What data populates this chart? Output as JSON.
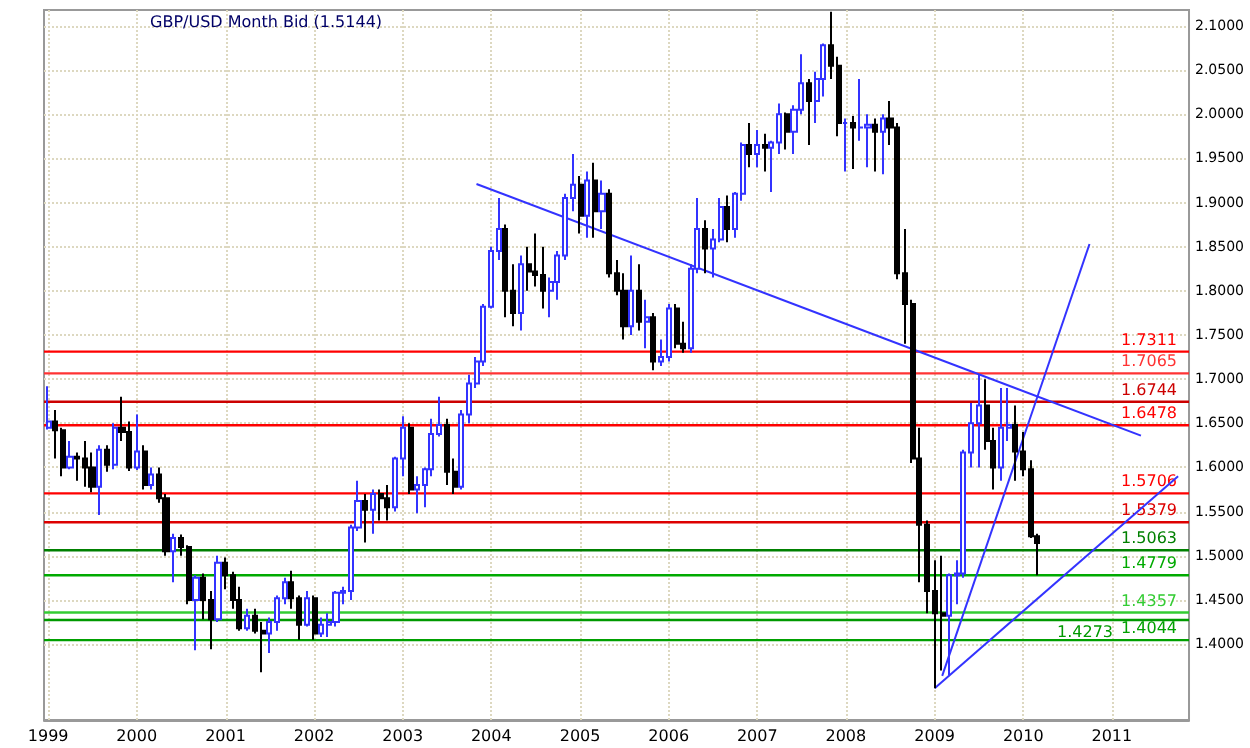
{
  "chart_data": {
    "type": "candlestick",
    "title": "GBP/USD Month Bid (1.5144)",
    "x": [
      "1999-01",
      "1999-02",
      "1999-03",
      "1999-04",
      "1999-05",
      "1999-06",
      "1999-07",
      "1999-08",
      "1999-09",
      "1999-10",
      "1999-11",
      "1999-12",
      "2000-01",
      "2000-02",
      "2000-03",
      "2000-04",
      "2000-05",
      "2000-06",
      "2000-07",
      "2000-08",
      "2000-09",
      "2000-10",
      "2000-11",
      "2000-12",
      "2001-01",
      "2001-02",
      "2001-03",
      "2001-04",
      "2001-05",
      "2001-06",
      "2001-07",
      "2001-08",
      "2001-09",
      "2001-10",
      "2001-11",
      "2001-12",
      "2002-01",
      "2002-02",
      "2002-03",
      "2002-04",
      "2002-05",
      "2002-06",
      "2002-07",
      "2002-08",
      "2002-09",
      "2002-10",
      "2002-11",
      "2002-12",
      "2003-01",
      "2003-02",
      "2003-03",
      "2003-04",
      "2003-05",
      "2003-06",
      "2003-07",
      "2003-08",
      "2003-09",
      "2003-10",
      "2003-11",
      "2003-12",
      "2004-01",
      "2004-02",
      "2004-03",
      "2004-04",
      "2004-05",
      "2004-06",
      "2004-07",
      "2004-08",
      "2004-09",
      "2004-10",
      "2004-11",
      "2004-12",
      "2005-01",
      "2005-02",
      "2005-03",
      "2005-04",
      "2005-05",
      "2005-06",
      "2005-07",
      "2005-08",
      "2005-09",
      "2005-10",
      "2005-11",
      "2005-12",
      "2006-01",
      "2006-02",
      "2006-03",
      "2006-04",
      "2006-05",
      "2006-06",
      "2006-07",
      "2006-08",
      "2006-09",
      "2006-10",
      "2006-11",
      "2006-12",
      "2007-01",
      "2007-02",
      "2007-03",
      "2007-04",
      "2007-05",
      "2007-06",
      "2007-07",
      "2007-08",
      "2007-09",
      "2007-10",
      "2007-11",
      "2007-12",
      "2008-01",
      "2008-02",
      "2008-03",
      "2008-04",
      "2008-05",
      "2008-06",
      "2008-07",
      "2008-08",
      "2008-09",
      "2008-10",
      "2008-11",
      "2008-12",
      "2009-01",
      "2009-02",
      "2009-03",
      "2009-04",
      "2009-05",
      "2009-06",
      "2009-07",
      "2009-08",
      "2009-09",
      "2009-10",
      "2009-11",
      "2009-12",
      "2010-01",
      "2010-02",
      "2010-03"
    ],
    "ohlc": [
      [
        1.645,
        1.692,
        1.643,
        1.652
      ],
      [
        1.652,
        1.665,
        1.61,
        1.642
      ],
      [
        1.642,
        1.645,
        1.59,
        1.6
      ],
      [
        1.6,
        1.63,
        1.598,
        1.612
      ],
      [
        1.612,
        1.617,
        1.585,
        1.61
      ],
      [
        1.61,
        1.63,
        1.578,
        1.6
      ],
      [
        1.6,
        1.617,
        1.572,
        1.578
      ],
      [
        1.578,
        1.625,
        1.546,
        1.62
      ],
      [
        1.62,
        1.625,
        1.595,
        1.603
      ],
      [
        1.603,
        1.65,
        1.598,
        1.645
      ],
      [
        1.645,
        1.68,
        1.63,
        1.64
      ],
      [
        1.64,
        1.652,
        1.596,
        1.6
      ],
      [
        1.6,
        1.66,
        1.597,
        1.618
      ],
      [
        1.618,
        1.625,
        1.575,
        1.58
      ],
      [
        1.58,
        1.6,
        1.575,
        1.592
      ],
      [
        1.592,
        1.6,
        1.56,
        1.565
      ],
      [
        1.565,
        1.57,
        1.5,
        1.505
      ],
      [
        1.505,
        1.525,
        1.47,
        1.52
      ],
      [
        1.52,
        1.524,
        1.5,
        1.51
      ],
      [
        1.51,
        1.512,
        1.445,
        1.45
      ],
      [
        1.45,
        1.478,
        1.393,
        1.475
      ],
      [
        1.475,
        1.48,
        1.428,
        1.45
      ],
      [
        1.45,
        1.46,
        1.394,
        1.428
      ],
      [
        1.428,
        1.5,
        1.425,
        1.492
      ],
      [
        1.492,
        1.498,
        1.462,
        1.478
      ],
      [
        1.478,
        1.482,
        1.44,
        1.45
      ],
      [
        1.45,
        1.465,
        1.415,
        1.418
      ],
      [
        1.418,
        1.44,
        1.415,
        1.432
      ],
      [
        1.432,
        1.44,
        1.412,
        1.415
      ],
      [
        1.415,
        1.425,
        1.368,
        1.412
      ],
      [
        1.412,
        1.43,
        1.39,
        1.425
      ],
      [
        1.425,
        1.455,
        1.415,
        1.452
      ],
      [
        1.452,
        1.475,
        1.445,
        1.47
      ],
      [
        1.47,
        1.483,
        1.44,
        1.452
      ],
      [
        1.452,
        1.455,
        1.405,
        1.422
      ],
      [
        1.422,
        1.46,
        1.42,
        1.452
      ],
      [
        1.452,
        1.455,
        1.405,
        1.412
      ],
      [
        1.412,
        1.43,
        1.408,
        1.422
      ],
      [
        1.422,
        1.435,
        1.408,
        1.425
      ],
      [
        1.425,
        1.46,
        1.42,
        1.458
      ],
      [
        1.458,
        1.465,
        1.445,
        1.46
      ],
      [
        1.46,
        1.535,
        1.45,
        1.532
      ],
      [
        1.532,
        1.585,
        1.528,
        1.562
      ],
      [
        1.562,
        1.57,
        1.515,
        1.552
      ],
      [
        1.552,
        1.575,
        1.525,
        1.57
      ],
      [
        1.57,
        1.575,
        1.54,
        1.565
      ],
      [
        1.565,
        1.58,
        1.54,
        1.555
      ],
      [
        1.555,
        1.612,
        1.55,
        1.61
      ],
      [
        1.61,
        1.658,
        1.59,
        1.645
      ],
      [
        1.645,
        1.65,
        1.57,
        1.575
      ],
      [
        1.575,
        1.59,
        1.548,
        1.58
      ],
      [
        1.58,
        1.6,
        1.555,
        1.598
      ],
      [
        1.598,
        1.655,
        1.59,
        1.638
      ],
      [
        1.638,
        1.68,
        1.635,
        1.648
      ],
      [
        1.648,
        1.655,
        1.58,
        1.595
      ],
      [
        1.595,
        1.61,
        1.57,
        1.578
      ],
      [
        1.578,
        1.665,
        1.575,
        1.66
      ],
      [
        1.66,
        1.705,
        1.65,
        1.695
      ],
      [
        1.695,
        1.725,
        1.69,
        1.72
      ],
      [
        1.72,
        1.785,
        1.715,
        1.782
      ],
      [
        1.782,
        1.85,
        1.78,
        1.845
      ],
      [
        1.845,
        1.905,
        1.835,
        1.87
      ],
      [
        1.87,
        1.875,
        1.77,
        1.8
      ],
      [
        1.8,
        1.83,
        1.76,
        1.775
      ],
      [
        1.775,
        1.84,
        1.755,
        1.83
      ],
      [
        1.83,
        1.85,
        1.8,
        1.822
      ],
      [
        1.822,
        1.865,
        1.805,
        1.818
      ],
      [
        1.818,
        1.85,
        1.78,
        1.8
      ],
      [
        1.8,
        1.815,
        1.77,
        1.81
      ],
      [
        1.81,
        1.845,
        1.79,
        1.84
      ],
      [
        1.84,
        1.91,
        1.835,
        1.905
      ],
      [
        1.905,
        1.955,
        1.89,
        1.92
      ],
      [
        1.92,
        1.93,
        1.865,
        1.885
      ],
      [
        1.885,
        1.935,
        1.86,
        1.925
      ],
      [
        1.925,
        1.945,
        1.86,
        1.89
      ],
      [
        1.89,
        1.925,
        1.87,
        1.91
      ],
      [
        1.91,
        1.915,
        1.815,
        1.82
      ],
      [
        1.82,
        1.835,
        1.795,
        1.8
      ],
      [
        1.8,
        1.82,
        1.745,
        1.76
      ],
      [
        1.76,
        1.84,
        1.75,
        1.8
      ],
      [
        1.8,
        1.83,
        1.755,
        1.765
      ],
      [
        1.765,
        1.79,
        1.735,
        1.77
      ],
      [
        1.77,
        1.775,
        1.71,
        1.72
      ],
      [
        1.72,
        1.745,
        1.715,
        1.725
      ],
      [
        1.725,
        1.785,
        1.72,
        1.78
      ],
      [
        1.78,
        1.785,
        1.735,
        1.74
      ],
      [
        1.74,
        1.765,
        1.73,
        1.735
      ],
      [
        1.735,
        1.83,
        1.73,
        1.825
      ],
      [
        1.825,
        1.905,
        1.82,
        1.87
      ],
      [
        1.87,
        1.88,
        1.82,
        1.848
      ],
      [
        1.848,
        1.87,
        1.815,
        1.858
      ],
      [
        1.858,
        1.905,
        1.855,
        1.895
      ],
      [
        1.895,
        1.908,
        1.855,
        1.87
      ],
      [
        1.87,
        1.912,
        1.86,
        1.91
      ],
      [
        1.91,
        1.968,
        1.902,
        1.965
      ],
      [
        1.965,
        1.99,
        1.94,
        1.955
      ],
      [
        1.955,
        1.982,
        1.94,
        1.965
      ],
      [
        1.965,
        1.978,
        1.935,
        1.962
      ],
      [
        1.962,
        1.97,
        1.912,
        1.968
      ],
      [
        1.968,
        2.012,
        1.955,
        2.0
      ],
      [
        2.0,
        2.002,
        1.96,
        1.98
      ],
      [
        1.98,
        2.01,
        1.955,
        2.005
      ],
      [
        2.005,
        2.068,
        2.0,
        2.035
      ],
      [
        2.035,
        2.04,
        1.965,
        2.015
      ],
      [
        2.015,
        2.048,
        1.99,
        2.04
      ],
      [
        2.04,
        2.08,
        2.02,
        2.078
      ],
      [
        2.078,
        2.116,
        2.04,
        2.055
      ],
      [
        2.055,
        2.065,
        1.975,
        1.99
      ],
      [
        1.99,
        1.995,
        1.935,
        1.99
      ],
      [
        1.99,
        1.998,
        1.938,
        1.985
      ],
      [
        1.985,
        2.04,
        1.97,
        1.985
      ],
      [
        1.985,
        2.0,
        1.94,
        1.988
      ],
      [
        1.988,
        1.995,
        1.935,
        1.98
      ],
      [
        1.98,
        2.0,
        1.932,
        1.995
      ],
      [
        1.995,
        2.015,
        1.965,
        1.985
      ],
      [
        1.985,
        1.99,
        1.813,
        1.82
      ],
      [
        1.82,
        1.87,
        1.74,
        1.785
      ],
      [
        1.785,
        1.79,
        1.605,
        1.61
      ],
      [
        1.61,
        1.645,
        1.47,
        1.535
      ],
      [
        1.535,
        1.54,
        1.435,
        1.46
      ],
      [
        1.46,
        1.495,
        1.35,
        1.435
      ],
      [
        1.435,
        1.5,
        1.37,
        1.432
      ],
      [
        1.432,
        1.48,
        1.365,
        1.478
      ],
      [
        1.478,
        1.495,
        1.445,
        1.48
      ],
      [
        1.48,
        1.62,
        1.475,
        1.617
      ],
      [
        1.617,
        1.673,
        1.6,
        1.65
      ],
      [
        1.65,
        1.705,
        1.6,
        1.67
      ],
      [
        1.67,
        1.7,
        1.62,
        1.63
      ],
      [
        1.63,
        1.645,
        1.575,
        1.6
      ],
      [
        1.6,
        1.69,
        1.585,
        1.645
      ],
      [
        1.645,
        1.69,
        1.63,
        1.648
      ],
      [
        1.648,
        1.67,
        1.585,
        1.618
      ],
      [
        1.618,
        1.64,
        1.59,
        1.598
      ],
      [
        1.598,
        1.608,
        1.52,
        1.522
      ],
      [
        1.522,
        1.525,
        1.478,
        1.5144
      ]
    ],
    "series": [
      {
        "type": "line",
        "color": "#3333ff",
        "x": [
          "2003-11",
          "2011-05"
        ],
        "values": [
          1.921,
          1.636
        ]
      },
      {
        "type": "line",
        "color": "#3333ff",
        "x": [
          "2009-02",
          "2010-10"
        ],
        "values": [
          1.364,
          1.853
        ]
      },
      {
        "type": "line",
        "color": "#3333ff",
        "x": [
          "2009-01",
          "2011-10"
        ],
        "values": [
          1.35,
          1.59
        ]
      }
    ],
    "ref_lines": [
      {
        "axis": "y",
        "value": 1.7311,
        "label": "1.7311",
        "color": "#ff0000"
      },
      {
        "axis": "y",
        "value": 1.7065,
        "label": "1.7065",
        "color": "#ff3333"
      },
      {
        "axis": "y",
        "value": 1.6744,
        "label": "1.6744",
        "color": "#cc0000"
      },
      {
        "axis": "y",
        "value": 1.6478,
        "label": "1.6478",
        "color": "#ff0000"
      },
      {
        "axis": "y",
        "value": 1.5706,
        "label": "1.5706",
        "color": "#ff0000"
      },
      {
        "axis": "y",
        "value": 1.5379,
        "label": "1.5379",
        "color": "#dd0000"
      },
      {
        "axis": "y",
        "value": 1.5063,
        "label": "1.5063",
        "color": "#008000"
      },
      {
        "axis": "y",
        "value": 1.4779,
        "label": "1.4779",
        "color": "#00aa00"
      },
      {
        "axis": "y",
        "value": 1.4357,
        "label": "1.4357",
        "color": "#33cc33"
      },
      {
        "axis": "y",
        "value": 1.4273,
        "label": "1.4273",
        "color": "#009900"
      },
      {
        "axis": "y",
        "value": 1.4044,
        "label": "1.4044",
        "color": "#00a000"
      }
    ],
    "xlim": [
      "1998-12-15",
      "2011-11-15"
    ],
    "xticks": [
      "1999",
      "2000",
      "2001",
      "2002",
      "2003",
      "2004",
      "2005",
      "2006",
      "2007",
      "2008",
      "2009",
      "2010",
      "2011"
    ],
    "ylim": [
      1.314,
      2.118
    ],
    "yticks": [
      {
        "value": 1.4,
        "label": "1.4000"
      },
      {
        "value": 1.45,
        "label": "1.4500"
      },
      {
        "value": 1.5,
        "label": "1.5000"
      },
      {
        "value": 1.55,
        "label": "1.5500"
      },
      {
        "value": 1.6,
        "label": "1.6000"
      },
      {
        "value": 1.65,
        "label": "1.6500"
      },
      {
        "value": 1.7,
        "label": "1.7000"
      },
      {
        "value": 1.75,
        "label": "1.7500"
      },
      {
        "value": 1.8,
        "label": "1.8000"
      },
      {
        "value": 1.85,
        "label": "1.8500"
      },
      {
        "value": 1.9,
        "label": "1.9000"
      },
      {
        "value": 1.95,
        "label": "1.9500"
      },
      {
        "value": 2.0,
        "label": "2.0000"
      },
      {
        "value": 2.05,
        "label": "2.0500"
      },
      {
        "value": 2.1,
        "label": "2.1000"
      }
    ],
    "grid": true
  }
}
